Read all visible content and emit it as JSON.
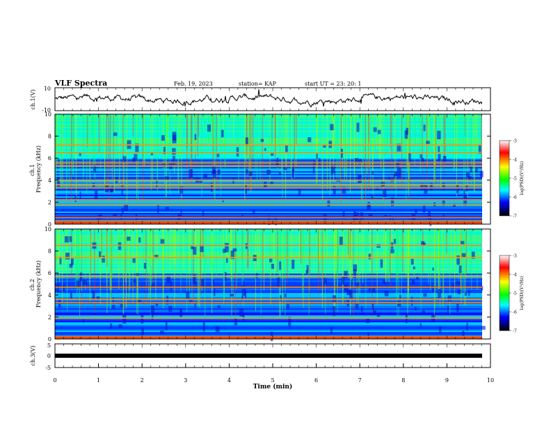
{
  "header": {
    "title": "VLF Spectra",
    "date": "Feb. 19, 2023",
    "station": "station= KAP",
    "start": "start  UT =  23: 20: 1"
  },
  "chart_data": [
    {
      "type": "line",
      "panel": "ch1-waveform",
      "ylabel": "ch.1(V)",
      "ylim": [
        -10,
        10
      ],
      "yticks": [
        "10",
        "-10"
      ],
      "xlim": [
        0,
        10
      ],
      "series": [
        {
          "values_hint": "noisy waveform around 0 V, mostly between -5 and 5 V"
        }
      ]
    },
    {
      "type": "heatmap",
      "panel": "ch1-spectrogram",
      "ylabel": "ch.1 Frequency (kHz)",
      "ylim": [
        0,
        10
      ],
      "yticks": [
        "0",
        "2",
        "4",
        "6",
        "8",
        "10"
      ],
      "xlim": [
        0,
        9.8
      ],
      "colorbar": {
        "label": "log(PSD)(V²/Hz)",
        "range": [
          -7,
          -3
        ],
        "ticks": [
          "-3",
          "-4",
          "-5",
          "-6",
          "-7"
        ]
      },
      "bands_khz": [
        0.3,
        0.6,
        1.8,
        2.2,
        3.3,
        3.6,
        4.0,
        5.3,
        5.6,
        6.5,
        7.2
      ]
    },
    {
      "type": "heatmap",
      "panel": "ch2-spectrogram",
      "ylabel": "ch.2 Frequency (kHz)",
      "ylim": [
        0,
        10
      ],
      "yticks": [
        "0",
        "2",
        "4",
        "6",
        "8",
        "10"
      ],
      "xlim": [
        0,
        9.8
      ],
      "colorbar": {
        "label": "log(PSD)(V²/Hz)",
        "range": [
          -7,
          -3
        ],
        "ticks": [
          "-3",
          "-4",
          "-5",
          "-6",
          "-7"
        ]
      },
      "bands_khz": [
        0.2,
        1.9,
        3.3,
        3.6,
        4.7,
        5.7,
        7.4,
        8.5
      ]
    },
    {
      "type": "line",
      "panel": "ch3-waveform",
      "ylabel": "ch.3(V)",
      "ylim": [
        -5,
        5
      ],
      "yticks": [
        "5",
        "0",
        "-5"
      ],
      "xlim": [
        0,
        10
      ],
      "xlabel": "Time  (min)",
      "xticks": [
        "0",
        "1",
        "2",
        "3",
        "4",
        "5",
        "6",
        "7",
        "8",
        "9",
        "10"
      ],
      "series": [
        {
          "values_hint": "flat thick line near -1 V"
        }
      ]
    }
  ],
  "colors": {
    "colorbar": [
      "#ffffff",
      "#ff0000",
      "#ffff00",
      "#00ff00",
      "#00ffff",
      "#0000ff",
      "#000000"
    ]
  }
}
